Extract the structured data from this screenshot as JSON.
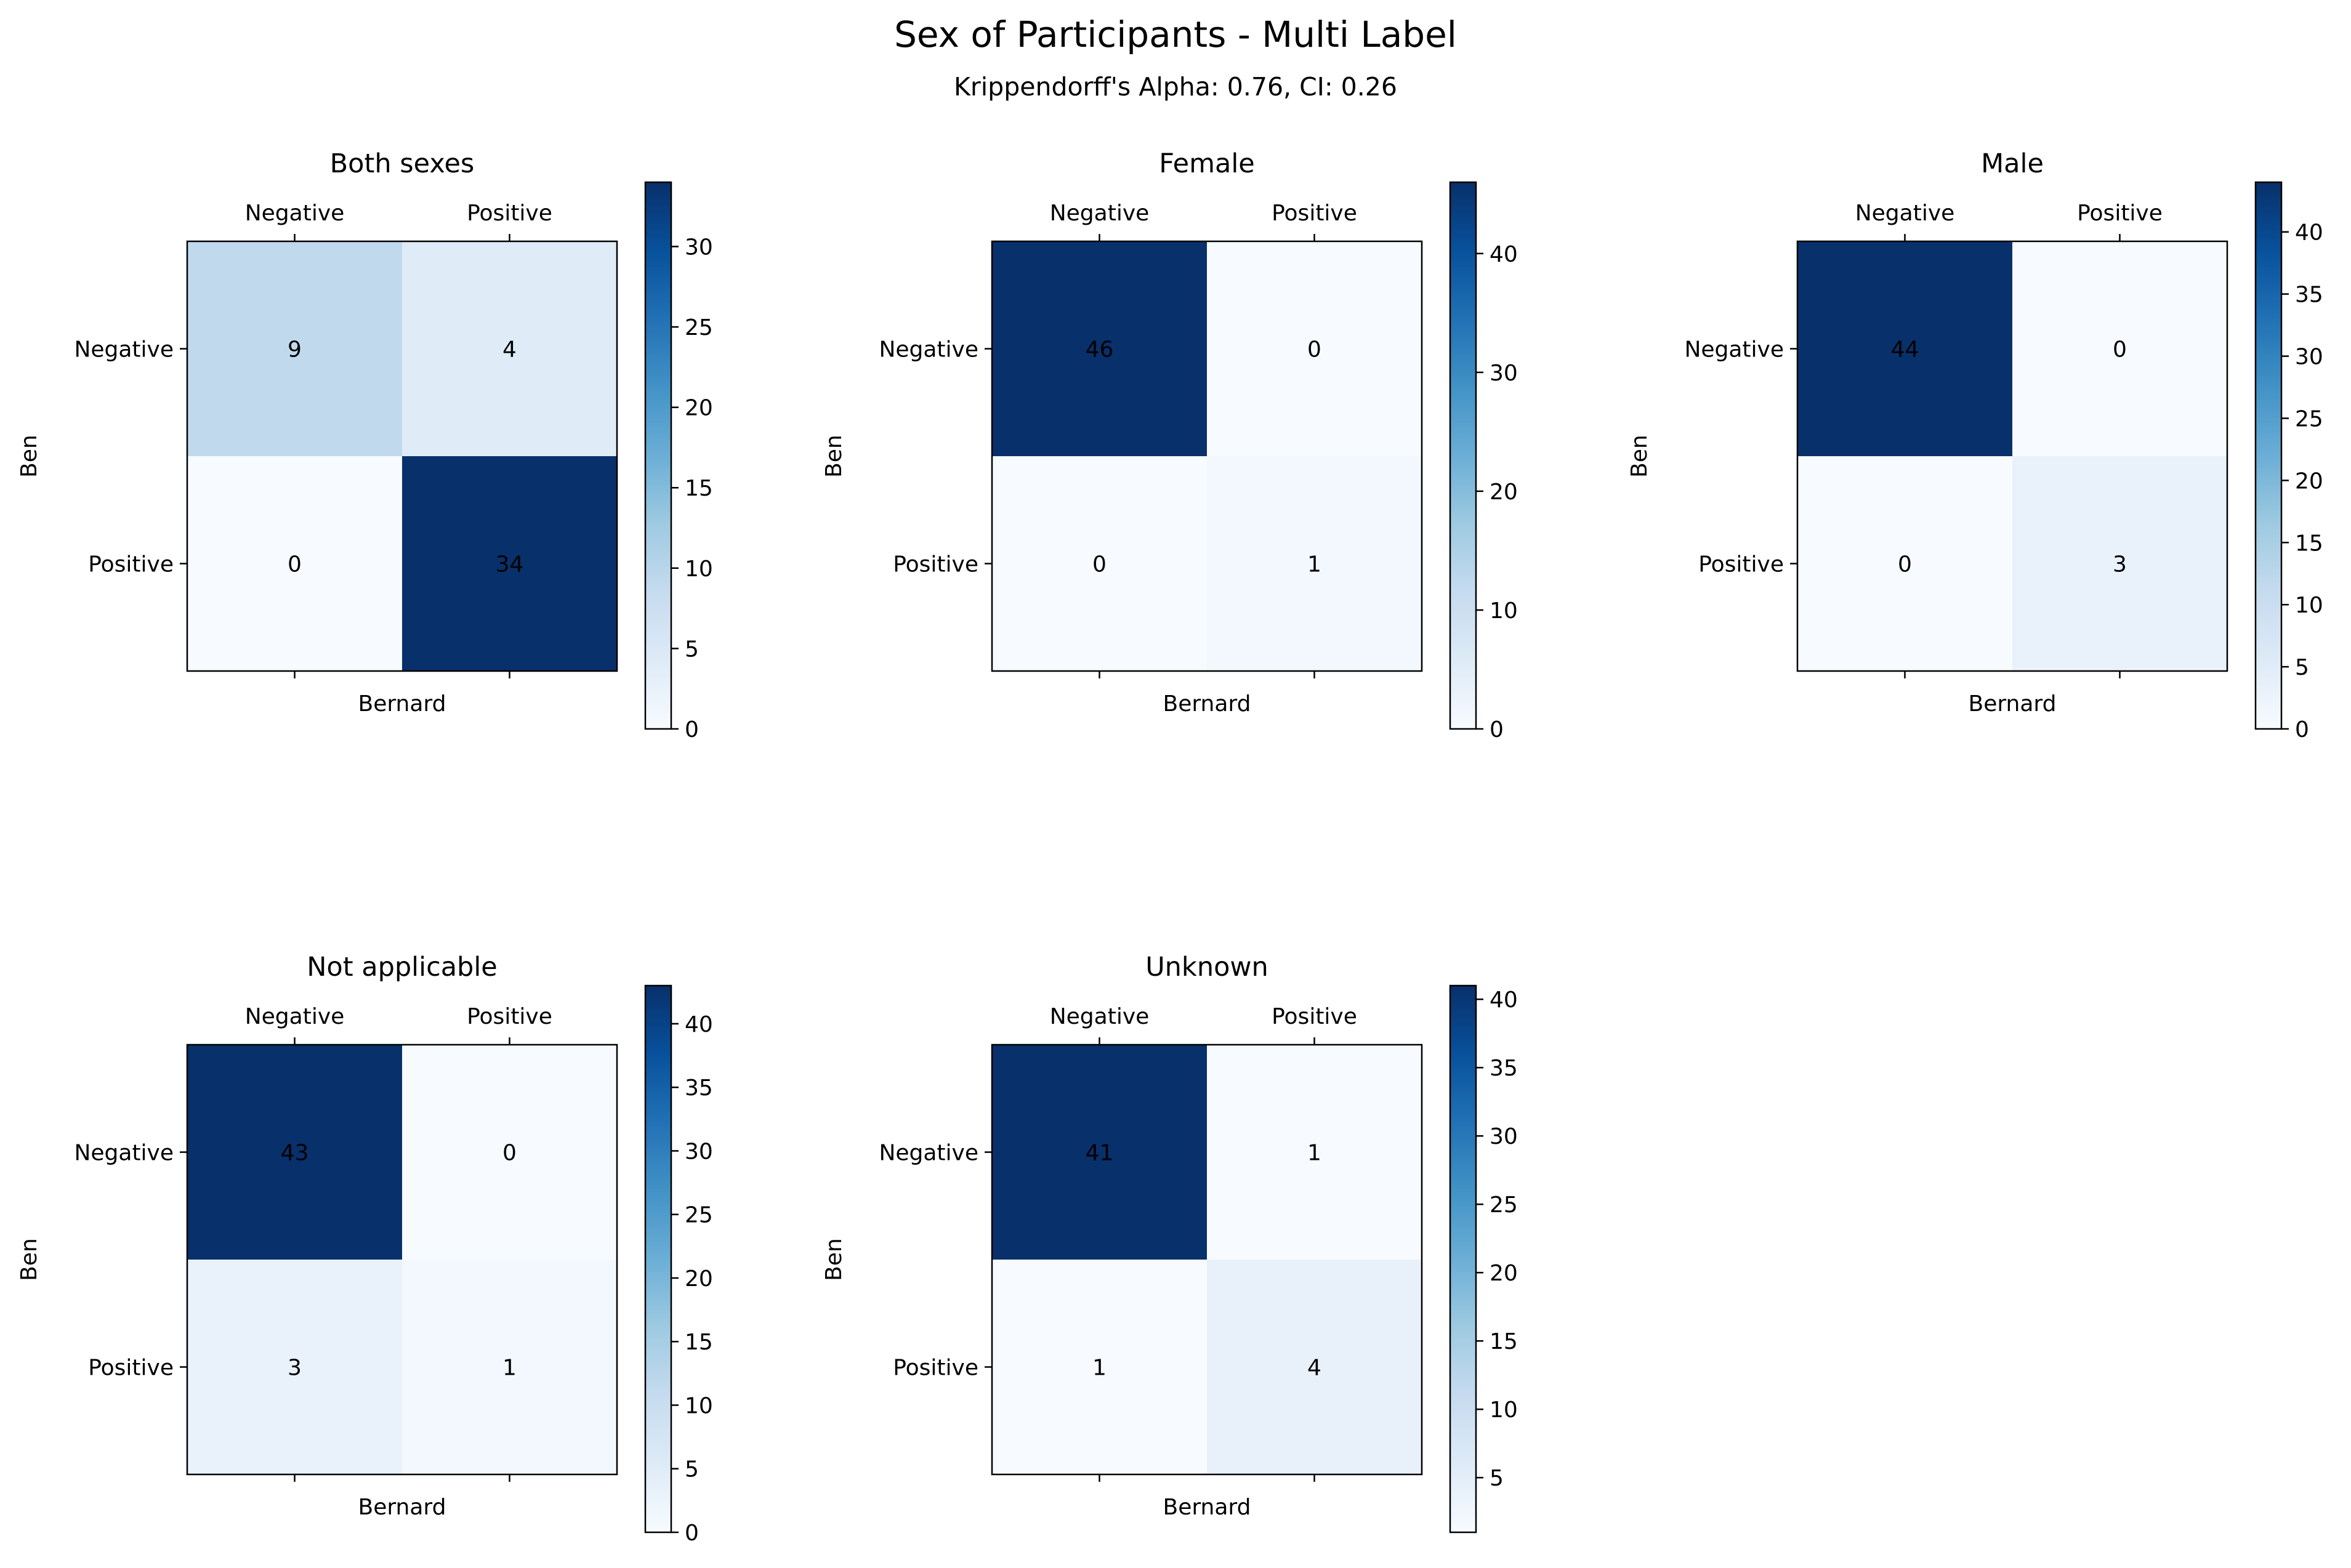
{
  "figure": {
    "title": "Sex of Participants - Multi Label",
    "subtitle": "Krippendorff's Alpha: 0.76, CI: 0.26"
  },
  "colors": {
    "cmap": "Blues",
    "low": "#f7fbff",
    "high": "#08306b",
    "text": "#000000"
  },
  "chart_data": [
    {
      "type": "heatmap",
      "title": "Both sexes",
      "xlabel": "Bernard",
      "ylabel": "Ben",
      "x_categories": [
        "Negative",
        "Positive"
      ],
      "y_categories": [
        "Negative",
        "Positive"
      ],
      "values": [
        [
          9,
          4
        ],
        [
          0,
          34
        ]
      ],
      "colorbar": {
        "min": 0,
        "max": 34,
        "ticks": [
          0,
          5,
          10,
          15,
          20,
          25,
          30
        ]
      }
    },
    {
      "type": "heatmap",
      "title": "Female",
      "xlabel": "Bernard",
      "ylabel": "Ben",
      "x_categories": [
        "Negative",
        "Positive"
      ],
      "y_categories": [
        "Negative",
        "Positive"
      ],
      "values": [
        [
          46,
          0
        ],
        [
          0,
          1
        ]
      ],
      "colorbar": {
        "min": 0,
        "max": 46,
        "ticks": [
          0,
          10,
          20,
          30,
          40
        ]
      }
    },
    {
      "type": "heatmap",
      "title": "Male",
      "xlabel": "Bernard",
      "ylabel": "Ben",
      "x_categories": [
        "Negative",
        "Positive"
      ],
      "y_categories": [
        "Negative",
        "Positive"
      ],
      "values": [
        [
          44,
          0
        ],
        [
          0,
          3
        ]
      ],
      "colorbar": {
        "min": 0,
        "max": 44,
        "ticks": [
          0,
          5,
          10,
          15,
          20,
          25,
          30,
          35,
          40
        ]
      }
    },
    {
      "type": "heatmap",
      "title": "Not applicable",
      "xlabel": "Bernard",
      "ylabel": "Ben",
      "x_categories": [
        "Negative",
        "Positive"
      ],
      "y_categories": [
        "Negative",
        "Positive"
      ],
      "values": [
        [
          43,
          0
        ],
        [
          3,
          1
        ]
      ],
      "colorbar": {
        "min": 0,
        "max": 43,
        "ticks": [
          0,
          5,
          10,
          15,
          20,
          25,
          30,
          35,
          40
        ]
      }
    },
    {
      "type": "heatmap",
      "title": "Unknown",
      "xlabel": "Bernard",
      "ylabel": "Ben",
      "x_categories": [
        "Negative",
        "Positive"
      ],
      "y_categories": [
        "Negative",
        "Positive"
      ],
      "values": [
        [
          41,
          1
        ],
        [
          1,
          4
        ]
      ],
      "colorbar": {
        "min": 1,
        "max": 41,
        "ticks": [
          5,
          10,
          15,
          20,
          25,
          30,
          35,
          40
        ]
      }
    }
  ]
}
